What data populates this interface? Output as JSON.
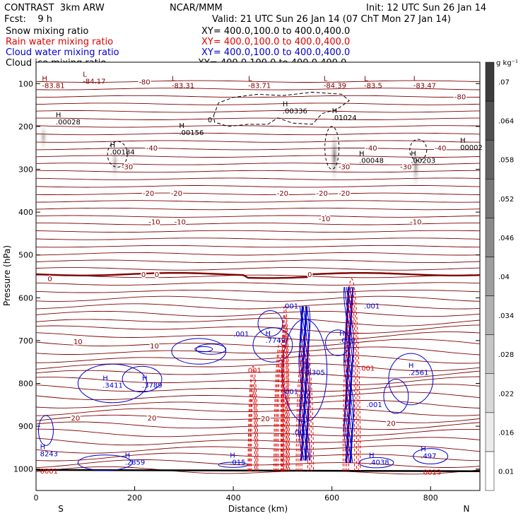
{
  "header": {
    "title_left": "CONTRAST  3km ARW",
    "title_center": "NCAR/MMM",
    "init": "Init: 12 UTC Sun 26 Jan 14",
    "fcst": "Fcst:    9 h",
    "valid": "Valid: 21 UTC Sun 26 Jan 14 (07 ChT Mon 27 Jan 14)"
  },
  "legend": [
    {
      "name": "Snow mixing ratio",
      "xy": "XY= 400.0,100.0 to 400.0,400.0",
      "color": "#000000"
    },
    {
      "name": "Rain water mixing ratio",
      "xy": "XY= 400.0,100.0 to 400.0,400.0",
      "color": "#e00000"
    },
    {
      "name": "Cloud water mixing ratio",
      "xy": "XY= 400.0,100.0 to 400.0,400.0",
      "color": "#0000cc"
    },
    {
      "name": "Cloud ice mixing ratio",
      "xy": "XY= 400.0,100.0 to 400.0,400.0",
      "color": "#000000"
    }
  ],
  "chart_data": {
    "type": "contour cross-section",
    "xlabel": "Distance (km)",
    "ylabel": "Pressure (hPa)",
    "xlim": [
      0,
      900
    ],
    "ylim": [
      1050,
      50
    ],
    "x_ticks": [
      0,
      200,
      400,
      600,
      800
    ],
    "y_ticks": [
      100,
      200,
      300,
      400,
      500,
      600,
      700,
      800,
      900,
      1000
    ],
    "x_end_labels": {
      "left": "S",
      "right": "N"
    },
    "colorbar": {
      "unit": "g kg⁻¹",
      "ticks": [
        "0.01",
        ".016",
        ".022",
        ".028",
        ".034",
        ".04",
        ".046",
        ".052",
        ".058",
        ".064",
        ".07"
      ]
    },
    "temperature_contours": [
      {
        "label": "-80",
        "p": 95
      },
      {
        "label": "-40",
        "p": 250
      },
      {
        "label": "-30",
        "p": 290
      },
      {
        "label": "-20",
        "p": 355
      },
      {
        "label": "-10",
        "p": 422
      },
      {
        "label": "0",
        "p": 545
      },
      {
        "label": "10",
        "p": 712
      },
      {
        "label": "20",
        "p": 885
      }
    ],
    "temp_labels": [
      {
        "text": "-80",
        "x": 220,
        "p": 95
      },
      {
        "text": "-80",
        "x": 860,
        "p": 130
      },
      {
        "text": "-40",
        "x": 235,
        "p": 250
      },
      {
        "text": "-40",
        "x": 680,
        "p": 250
      },
      {
        "text": "-40",
        "x": 820,
        "p": 250
      },
      {
        "text": "-30",
        "x": 185,
        "p": 293
      },
      {
        "text": "-30",
        "x": 625,
        "p": 293
      },
      {
        "text": "-30",
        "x": 750,
        "p": 293
      },
      {
        "text": "-20",
        "x": 228,
        "p": 355
      },
      {
        "text": "-20",
        "x": 285,
        "p": 355
      },
      {
        "text": "-20",
        "x": 500,
        "p": 355
      },
      {
        "text": "-20",
        "x": 580,
        "p": 355
      },
      {
        "text": "-20",
        "x": 625,
        "p": 355
      },
      {
        "text": "-10",
        "x": 240,
        "p": 422
      },
      {
        "text": "-10",
        "x": 292,
        "p": 422
      },
      {
        "text": "-10",
        "x": 585,
        "p": 415
      },
      {
        "text": "-10",
        "x": 770,
        "p": 422
      },
      {
        "text": "0",
        "x": 28,
        "p": 555
      },
      {
        "text": "0",
        "x": 218,
        "p": 545
      },
      {
        "text": "0",
        "x": 245,
        "p": 545
      },
      {
        "text": "0",
        "x": 555,
        "p": 545
      },
      {
        "text": "10",
        "x": 85,
        "p": 702
      },
      {
        "text": "10",
        "x": 240,
        "p": 712
      },
      {
        "text": "20",
        "x": 80,
        "p": 880
      },
      {
        "text": "20",
        "x": 235,
        "p": 880
      },
      {
        "text": "20",
        "x": 465,
        "p": 882
      },
      {
        "text": "20",
        "x": 720,
        "p": 892
      }
    ],
    "extrema_labels": [
      {
        "mark": "H",
        "value": "-83.81",
        "x": 12,
        "p": 110,
        "color": "#800000"
      },
      {
        "mark": "L",
        "value": "-84.17",
        "x": 95,
        "p": 100,
        "color": "#800000"
      },
      {
        "mark": "L",
        "value": "-83.31",
        "x": 275,
        "p": 110,
        "color": "#800000"
      },
      {
        "mark": "L",
        "value": "-83.71",
        "x": 430,
        "p": 110,
        "color": "#800000"
      },
      {
        "mark": "L",
        "value": "-84.39",
        "x": 583,
        "p": 110,
        "color": "#800000"
      },
      {
        "mark": "L",
        "value": "-83.5",
        "x": 665,
        "p": 110,
        "color": "#800000"
      },
      {
        "mark": "L",
        "value": "-83.47",
        "x": 765,
        "p": 110,
        "color": "#800000"
      },
      {
        "mark": "H",
        "value": ".00028",
        "x": 40,
        "p": 195,
        "color": "#000000"
      },
      {
        "mark": "H",
        "value": ".00184",
        "x": 150,
        "p": 265,
        "color": "#000000"
      },
      {
        "mark": "H",
        "value": ".00156",
        "x": 290,
        "p": 220,
        "color": "#000000"
      },
      {
        "mark": "H",
        "value": ".00336",
        "x": 500,
        "p": 170,
        "color": "#000000"
      },
      {
        "mark": "H",
        "value": ".01024",
        "x": 600,
        "p": 185,
        "color": "#000000"
      },
      {
        "mark": "H",
        "value": ".00048",
        "x": 655,
        "p": 285,
        "color": "#000000"
      },
      {
        "mark": "H",
        "value": ".00203",
        "x": 760,
        "p": 285,
        "color": "#000000"
      },
      {
        "mark": "H",
        "value": "00002",
        "x": 860,
        "p": 255,
        "color": "#000000"
      },
      {
        "mark": "H",
        "value": ".3411",
        "x": 135,
        "p": 810,
        "color": "#0000cc"
      },
      {
        "mark": "H",
        "value": ".3789",
        "x": 215,
        "p": 810,
        "color": "#0000cc"
      },
      {
        "mark": "H",
        "value": ".7749",
        "x": 465,
        "p": 705,
        "color": "#0000cc"
      },
      {
        "mark": "H",
        "value": ".8305",
        "x": 545,
        "p": 780,
        "color": "#0000cc"
      },
      {
        "mark": "H",
        "value": ".620",
        "x": 615,
        "p": 705,
        "color": "#0000cc"
      },
      {
        "mark": "H",
        "value": ".2561",
        "x": 755,
        "p": 780,
        "color": "#0000cc"
      },
      {
        "mark": "H",
        "value": "8243",
        "x": 8,
        "p": 970,
        "color": "#0000cc"
      },
      {
        "mark": "H",
        "value": ".2859",
        "x": 180,
        "p": 990,
        "color": "#0000cc"
      },
      {
        "mark": "H",
        "value": ".015",
        "x": 393,
        "p": 990,
        "color": "#0000cc"
      },
      {
        "mark": "H",
        "value": ".4038",
        "x": 675,
        "p": 990,
        "color": "#0000cc"
      },
      {
        "mark": "H",
        "value": ".497",
        "x": 780,
        "p": 975,
        "color": "#0000cc"
      },
      {
        "mark": "",
        "value": "0001",
        "x": 8,
        "p": 1010,
        "color": "#e00000"
      },
      {
        "mark": "",
        "value": "0013",
        "x": 785,
        "p": 1013,
        "color": "#e00000"
      },
      {
        "mark": "",
        "value": ".001",
        "x": 400,
        "p": 690,
        "color": "#0000cc"
      },
      {
        "mark": "",
        "value": ".001",
        "x": 500,
        "p": 625,
        "color": "#0000cc"
      },
      {
        "mark": "",
        "value": ".001",
        "x": 665,
        "p": 625,
        "color": "#0000cc"
      },
      {
        "mark": "",
        "value": ".001",
        "x": 500,
        "p": 825,
        "color": "#0000cc"
      },
      {
        "mark": "",
        "value": ".001",
        "x": 670,
        "p": 855,
        "color": "#0000cc"
      },
      {
        "mark": "",
        "value": ".001",
        "x": 425,
        "p": 775,
        "color": "#e00000"
      },
      {
        "mark": "",
        "value": ".001",
        "x": 655,
        "p": 770,
        "color": "#e00000"
      },
      {
        "mark": "",
        "value": ".001",
        "x": 520,
        "p": 920,
        "color": "#0000cc"
      },
      {
        "mark": "",
        "value": "0",
        "x": 348,
        "p": 190,
        "color": "#000000"
      }
    ],
    "snow_shading_columns": [
      {
        "x": 15,
        "p_top": 190,
        "p_bottom": 260,
        "intensity": 0.45
      },
      {
        "x": 160,
        "p_top": 240,
        "p_bottom": 330,
        "intensity": 0.45
      },
      {
        "x": 605,
        "p_top": 200,
        "p_bottom": 340,
        "intensity": 0.75
      },
      {
        "x": 770,
        "p_top": 240,
        "p_bottom": 350,
        "intensity": 0.55
      }
    ]
  }
}
